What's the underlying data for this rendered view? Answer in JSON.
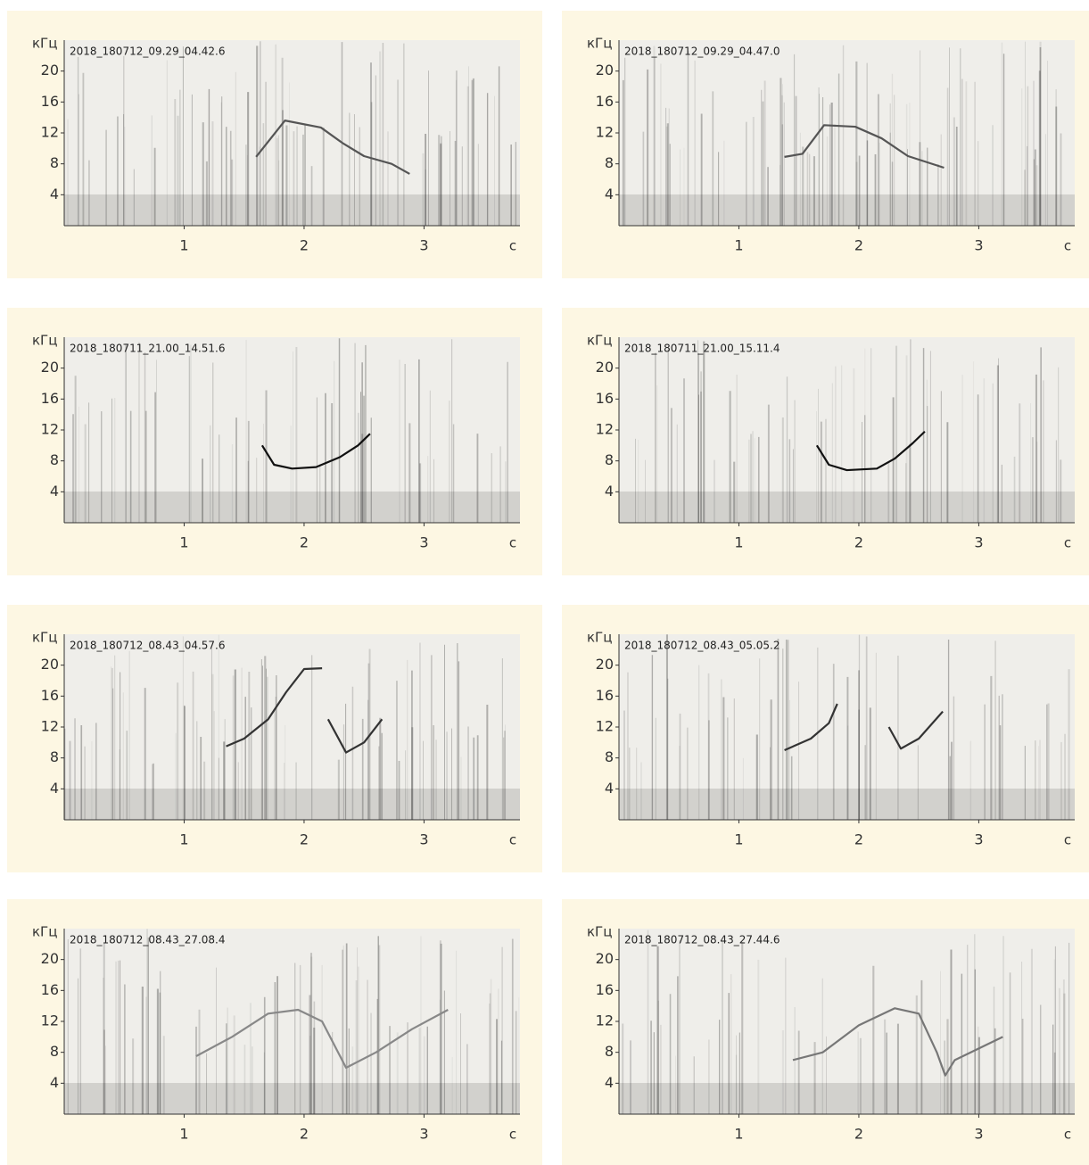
{
  "chart_data": [
    {
      "type": "spectrogram",
      "title": "2018_180712_09.29_04.42.6",
      "y_label": "кГц",
      "x_label": "с",
      "xlim": [
        0,
        3.8
      ],
      "ylim": [
        0,
        24
      ],
      "xticks": [
        1,
        2,
        3
      ],
      "yticks": [
        4,
        8,
        12,
        16,
        20
      ],
      "color": "#555555",
      "x": [
        1.6,
        1.84,
        2.14,
        2.32,
        2.5,
        2.73,
        2.88
      ],
      "values": [
        8.9,
        13.6,
        12.7,
        10.7,
        9,
        8,
        6.7
      ]
    },
    {
      "type": "spectrogram",
      "title": "2018_180712_09.29_04.47.0",
      "y_label": "кГц",
      "x_label": "с",
      "xlim": [
        0,
        3.8
      ],
      "ylim": [
        0,
        24
      ],
      "xticks": [
        1,
        2,
        3
      ],
      "yticks": [
        4,
        8,
        12,
        16,
        20
      ],
      "color": "#555555",
      "x": [
        1.38,
        1.53,
        1.71,
        1.97,
        2.19,
        2.41,
        2.71
      ],
      "values": [
        8.9,
        9.3,
        13,
        12.8,
        11.3,
        9,
        7.5
      ]
    },
    {
      "type": "spectrogram",
      "title": "2018_180711_21.00_14.51.6",
      "y_label": "кГц",
      "x_label": "с",
      "xlim": [
        0,
        3.8
      ],
      "ylim": [
        0,
        24
      ],
      "xticks": [
        1,
        2,
        3
      ],
      "yticks": [
        4,
        8,
        12,
        16,
        20
      ],
      "color": "#111111",
      "x": [
        1.65,
        1.75,
        1.9,
        2.1,
        2.3,
        2.45,
        2.55
      ],
      "values": [
        10,
        7.5,
        7,
        7.2,
        8.5,
        10,
        11.5
      ]
    },
    {
      "type": "spectrogram",
      "title": "2018_180711_21.00_15.11.4",
      "y_label": "кГц",
      "x_label": "с",
      "xlim": [
        0,
        3.8
      ],
      "ylim": [
        0,
        24
      ],
      "xticks": [
        1,
        2,
        3
      ],
      "yticks": [
        4,
        8,
        12,
        16,
        20
      ],
      "color": "#111111",
      "x": [
        1.65,
        1.75,
        1.9,
        2.15,
        2.3,
        2.45,
        2.55
      ],
      "values": [
        10,
        7.5,
        6.8,
        7,
        8.3,
        10.3,
        11.8
      ]
    },
    {
      "type": "spectrogram",
      "title": "2018_180712_08.43_04.57.6",
      "y_label": "кГц",
      "x_label": "с",
      "xlim": [
        0,
        3.8
      ],
      "ylim": [
        0,
        24
      ],
      "xticks": [
        1,
        2,
        3
      ],
      "yticks": [
        4,
        8,
        12,
        16,
        20
      ],
      "color": "#333333",
      "x": [
        1.35,
        1.5,
        1.7,
        1.85,
        2.0,
        2.15,
        2.17,
        2.2,
        2.35,
        2.5,
        2.65
      ],
      "values": [
        9.5,
        10.5,
        13,
        16.5,
        19.5,
        19.6,
        null,
        13,
        8.7,
        10,
        13
      ]
    },
    {
      "type": "spectrogram",
      "title": "2018_180712_08.43_05.05.2",
      "y_label": "кГц",
      "x_label": "с",
      "xlim": [
        0,
        3.8
      ],
      "ylim": [
        0,
        24
      ],
      "xticks": [
        1,
        2,
        3
      ],
      "yticks": [
        4,
        8,
        12,
        16,
        20
      ],
      "color": "#333333",
      "x": [
        1.38,
        1.6,
        1.75,
        1.82,
        2.0,
        2.25,
        2.35,
        2.5,
        2.7
      ],
      "values": [
        9,
        10.5,
        12.5,
        15,
        null,
        12,
        9.2,
        10.5,
        14
      ]
    },
    {
      "type": "spectrogram",
      "title": "2018_180712_08.43_27.08.4",
      "y_label": "кГц",
      "x_label": "с",
      "xlim": [
        0,
        3.8
      ],
      "ylim": [
        0,
        24
      ],
      "xticks": [
        1,
        2,
        3
      ],
      "yticks": [
        4,
        8,
        12,
        16,
        20
      ],
      "color": "#888888",
      "x": [
        1.1,
        1.4,
        1.7,
        1.95,
        2.15,
        2.35,
        2.6,
        2.9,
        3.2
      ],
      "values": [
        7.5,
        10,
        13,
        13.5,
        12,
        6,
        8,
        11,
        13.5
      ]
    },
    {
      "type": "spectrogram",
      "title": "2018_180712_08.43_27.44.6",
      "y_label": "кГц",
      "x_label": "с",
      "xlim": [
        0,
        3.8
      ],
      "ylim": [
        0,
        24
      ],
      "xticks": [
        1,
        2,
        3
      ],
      "yticks": [
        4,
        8,
        12,
        16,
        20
      ],
      "color": "#777777",
      "x": [
        1.45,
        1.7,
        2.0,
        2.3,
        2.5,
        2.65,
        2.72,
        2.8,
        3.0,
        3.2
      ],
      "values": [
        7,
        8,
        11.5,
        13.7,
        13,
        8,
        5,
        7,
        8.5,
        10
      ]
    }
  ]
}
